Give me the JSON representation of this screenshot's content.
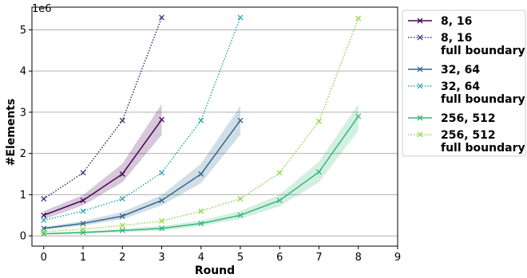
{
  "chart_data": {
    "type": "line",
    "title": "",
    "xlabel": "Round",
    "ylabel": "#Elements",
    "y_offset_label": "1e6",
    "xlim": [
      -0.3,
      9
    ],
    "ylim": [
      -0.25,
      5.55
    ],
    "xticks": [
      "0",
      "1",
      "2",
      "3",
      "4",
      "5",
      "6",
      "7",
      "8",
      "9"
    ],
    "yticks": [
      "0",
      "1",
      "2",
      "3",
      "4",
      "5"
    ],
    "grid": "horizontal",
    "legend_position": "outside-right",
    "series": [
      {
        "name": "8, 16",
        "color": "#440154",
        "style": "solid",
        "marker": "x",
        "x": [
          0,
          1,
          2,
          3
        ],
        "y": [
          0.5,
          0.86,
          1.5,
          2.82
        ],
        "lower": [
          0.4,
          0.74,
          1.3,
          2.45
        ],
        "upper": [
          0.6,
          0.99,
          1.75,
          3.2
        ]
      },
      {
        "name": "8, 16\nfull boundary",
        "color": "#482878",
        "style": "dotted",
        "marker": "x",
        "x": [
          0,
          1,
          2,
          3
        ],
        "y": [
          0.9,
          1.53,
          2.8,
          5.3
        ]
      },
      {
        "name": "32, 64",
        "color": "#31688e",
        "style": "solid",
        "marker": "x",
        "x": [
          0,
          1,
          2,
          3,
          4,
          5
        ],
        "y": [
          0.18,
          0.3,
          0.48,
          0.86,
          1.5,
          2.8
        ],
        "lower": [
          0.14,
          0.25,
          0.4,
          0.74,
          1.28,
          2.45
        ],
        "upper": [
          0.22,
          0.36,
          0.58,
          0.99,
          1.75,
          3.15
        ]
      },
      {
        "name": "32, 64\nfull boundary",
        "color": "#26a9a9",
        "style": "dotted",
        "marker": "x",
        "x": [
          0,
          1,
          2,
          3,
          4,
          5
        ],
        "y": [
          0.38,
          0.6,
          0.9,
          1.53,
          2.8,
          5.3
        ]
      },
      {
        "name": "256, 512",
        "color": "#35b779",
        "style": "solid",
        "marker": "x",
        "x": [
          0,
          1,
          2,
          3,
          4,
          5,
          6,
          7,
          8
        ],
        "y": [
          0.05,
          0.08,
          0.13,
          0.18,
          0.3,
          0.5,
          0.86,
          1.55,
          2.9
        ],
        "lower": [
          0.03,
          0.05,
          0.09,
          0.13,
          0.24,
          0.41,
          0.72,
          1.3,
          2.55
        ],
        "upper": [
          0.07,
          0.11,
          0.17,
          0.24,
          0.37,
          0.6,
          1.0,
          1.8,
          3.2
        ]
      },
      {
        "name": "256, 512\nfull boundary",
        "color": "#90d743",
        "style": "dotted",
        "marker": "x",
        "x": [
          0,
          1,
          2,
          3,
          4,
          5,
          6,
          7,
          8
        ],
        "y": [
          0.1,
          0.16,
          0.25,
          0.36,
          0.6,
          0.9,
          1.53,
          2.78,
          5.28
        ]
      }
    ]
  }
}
